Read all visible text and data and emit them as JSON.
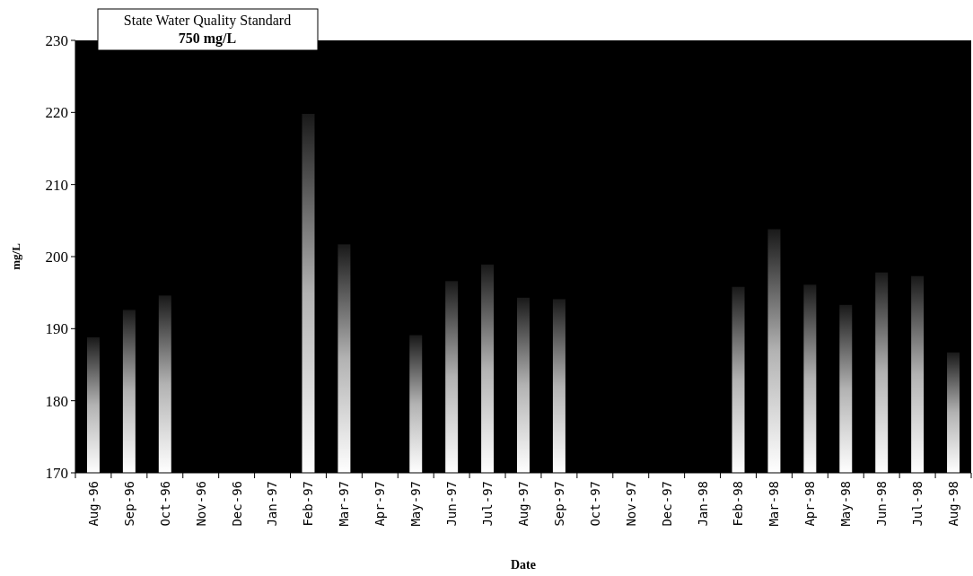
{
  "chart_data": {
    "type": "bar",
    "xlabel": "Date",
    "ylabel": "mg/L",
    "categories": [
      "Aug-96",
      "Sep-96",
      "Oct-96",
      "Nov-96",
      "Dec-96",
      "Jan-97",
      "Feb-97",
      "Mar-97",
      "Apr-97",
      "May-97",
      "Jun-97",
      "Jul-97",
      "Aug-97",
      "Sep-97",
      "Oct-97",
      "Nov-97",
      "Dec-97",
      "Jan-98",
      "Feb-98",
      "Mar-98",
      "Apr-98",
      "May-98",
      "Jun-98",
      "Jul-98",
      "Aug-98"
    ],
    "values": [
      188.8,
      192.6,
      194.6,
      null,
      null,
      null,
      219.8,
      201.7,
      null,
      189.1,
      196.6,
      198.9,
      194.3,
      194.1,
      null,
      null,
      null,
      null,
      195.8,
      203.8,
      196.1,
      193.3,
      197.8,
      197.3,
      186.7
    ],
    "color": "#ffffff",
    "ylim": [
      170,
      230
    ],
    "yticks": [
      170,
      180,
      190,
      200,
      210,
      220,
      230
    ],
    "grid": false,
    "annotations": [
      "State Water Quality Standard",
      "750 mg/L"
    ]
  }
}
